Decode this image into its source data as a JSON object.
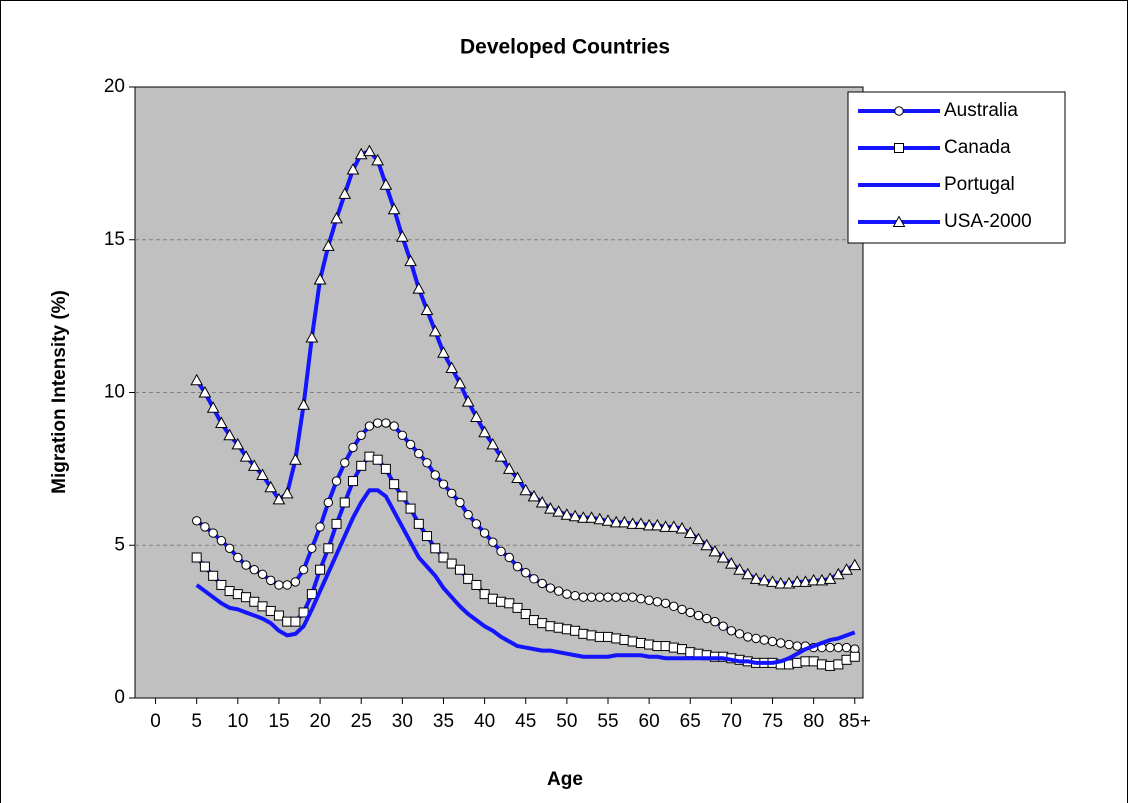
{
  "chart_data": {
    "type": "line",
    "title": "Developed Countries",
    "x_label": "Age",
    "y_label": "Migration Intensity (%)",
    "x": [
      5,
      6,
      7,
      8,
      9,
      10,
      11,
      12,
      13,
      14,
      15,
      16,
      17,
      18,
      19,
      20,
      21,
      22,
      23,
      24,
      25,
      26,
      27,
      28,
      29,
      30,
      31,
      32,
      33,
      34,
      35,
      36,
      37,
      38,
      39,
      40,
      41,
      42,
      43,
      44,
      45,
      46,
      47,
      48,
      49,
      50,
      51,
      52,
      53,
      54,
      55,
      56,
      57,
      58,
      59,
      60,
      61,
      62,
      63,
      64,
      65,
      66,
      67,
      68,
      69,
      70,
      71,
      72,
      73,
      74,
      75,
      76,
      77,
      78,
      79,
      80,
      81,
      82,
      83,
      84,
      85
    ],
    "series": [
      {
        "name": "Australia",
        "color": "#1414ff",
        "marker": "circle",
        "values": [
          5.8,
          5.6,
          5.4,
          5.15,
          4.9,
          4.6,
          4.35,
          4.2,
          4.05,
          3.85,
          3.7,
          3.7,
          3.8,
          4.2,
          4.9,
          5.6,
          6.4,
          7.1,
          7.7,
          8.2,
          8.6,
          8.9,
          9.0,
          9.0,
          8.9,
          8.6,
          8.3,
          8.0,
          7.7,
          7.3,
          7.0,
          6.7,
          6.4,
          6.0,
          5.7,
          5.4,
          5.1,
          4.8,
          4.6,
          4.3,
          4.1,
          3.9,
          3.75,
          3.6,
          3.5,
          3.4,
          3.35,
          3.3,
          3.3,
          3.3,
          3.3,
          3.3,
          3.3,
          3.3,
          3.25,
          3.2,
          3.15,
          3.1,
          3.0,
          2.9,
          2.8,
          2.7,
          2.6,
          2.5,
          2.35,
          2.2,
          2.1,
          2.0,
          1.95,
          1.9,
          1.85,
          1.8,
          1.75,
          1.7,
          1.7,
          1.65,
          1.65,
          1.65,
          1.65,
          1.65,
          1.6
        ]
      },
      {
        "name": "Canada",
        "color": "#1414ff",
        "marker": "square",
        "values": [
          4.6,
          4.3,
          4.0,
          3.7,
          3.5,
          3.4,
          3.3,
          3.15,
          3.0,
          2.85,
          2.7,
          2.5,
          2.5,
          2.8,
          3.4,
          4.2,
          4.9,
          5.7,
          6.4,
          7.1,
          7.6,
          7.9,
          7.8,
          7.5,
          7.0,
          6.6,
          6.2,
          5.7,
          5.3,
          4.9,
          4.6,
          4.4,
          4.2,
          3.9,
          3.7,
          3.4,
          3.25,
          3.15,
          3.1,
          2.95,
          2.75,
          2.55,
          2.45,
          2.35,
          2.3,
          2.25,
          2.2,
          2.1,
          2.05,
          2.0,
          2.0,
          1.95,
          1.9,
          1.85,
          1.8,
          1.75,
          1.7,
          1.7,
          1.65,
          1.6,
          1.5,
          1.45,
          1.4,
          1.35,
          1.35,
          1.3,
          1.25,
          1.2,
          1.15,
          1.15,
          1.15,
          1.1,
          1.1,
          1.15,
          1.2,
          1.2,
          1.1,
          1.05,
          1.1,
          1.25,
          1.35
        ]
      },
      {
        "name": "Portugal",
        "color": "#1414ff",
        "marker": "none",
        "values": [
          3.7,
          3.5,
          3.3,
          3.1,
          2.95,
          2.9,
          2.8,
          2.7,
          2.6,
          2.45,
          2.2,
          2.05,
          2.1,
          2.35,
          2.9,
          3.5,
          4.1,
          4.7,
          5.3,
          5.9,
          6.4,
          6.8,
          6.8,
          6.6,
          6.1,
          5.6,
          5.1,
          4.6,
          4.3,
          4.0,
          3.6,
          3.3,
          3.0,
          2.75,
          2.55,
          2.35,
          2.2,
          2.0,
          1.85,
          1.7,
          1.65,
          1.6,
          1.55,
          1.55,
          1.5,
          1.45,
          1.4,
          1.35,
          1.35,
          1.35,
          1.35,
          1.4,
          1.4,
          1.4,
          1.4,
          1.35,
          1.35,
          1.3,
          1.3,
          1.3,
          1.3,
          1.3,
          1.3,
          1.3,
          1.3,
          1.25,
          1.2,
          1.2,
          1.15,
          1.15,
          1.15,
          1.2,
          1.3,
          1.45,
          1.6,
          1.7,
          1.8,
          1.9,
          1.95,
          2.05,
          2.15
        ]
      },
      {
        "name": "USA-2000",
        "color": "#1414ff",
        "marker": "triangle",
        "values": [
          10.4,
          10.0,
          9.5,
          9.0,
          8.6,
          8.3,
          7.9,
          7.6,
          7.3,
          6.9,
          6.5,
          6.7,
          7.8,
          9.6,
          11.8,
          13.7,
          14.8,
          15.7,
          16.5,
          17.3,
          17.8,
          17.9,
          17.6,
          16.8,
          16.0,
          15.1,
          14.3,
          13.4,
          12.7,
          12.0,
          11.3,
          10.8,
          10.3,
          9.7,
          9.2,
          8.7,
          8.3,
          7.9,
          7.5,
          7.2,
          6.8,
          6.6,
          6.4,
          6.2,
          6.1,
          6.0,
          5.95,
          5.9,
          5.9,
          5.85,
          5.8,
          5.75,
          5.75,
          5.7,
          5.7,
          5.65,
          5.65,
          5.6,
          5.6,
          5.55,
          5.4,
          5.2,
          5.0,
          4.8,
          4.6,
          4.4,
          4.2,
          4.05,
          3.9,
          3.85,
          3.8,
          3.75,
          3.75,
          3.8,
          3.8,
          3.85,
          3.85,
          3.9,
          4.05,
          4.2,
          4.35
        ]
      }
    ],
    "xlim": [
      -2.5,
      86
    ],
    "xticks": [
      0,
      5,
      10,
      15,
      20,
      25,
      30,
      35,
      40,
      45,
      50,
      55,
      60,
      65,
      70,
      75,
      80,
      {
        "value": 85,
        "label": "85+"
      }
    ],
    "ylim": [
      0,
      20
    ],
    "yticks": [
      0,
      5,
      10,
      15,
      20
    ],
    "grid": true,
    "plot_background": "#c0c0c0",
    "legend": "top-right"
  }
}
